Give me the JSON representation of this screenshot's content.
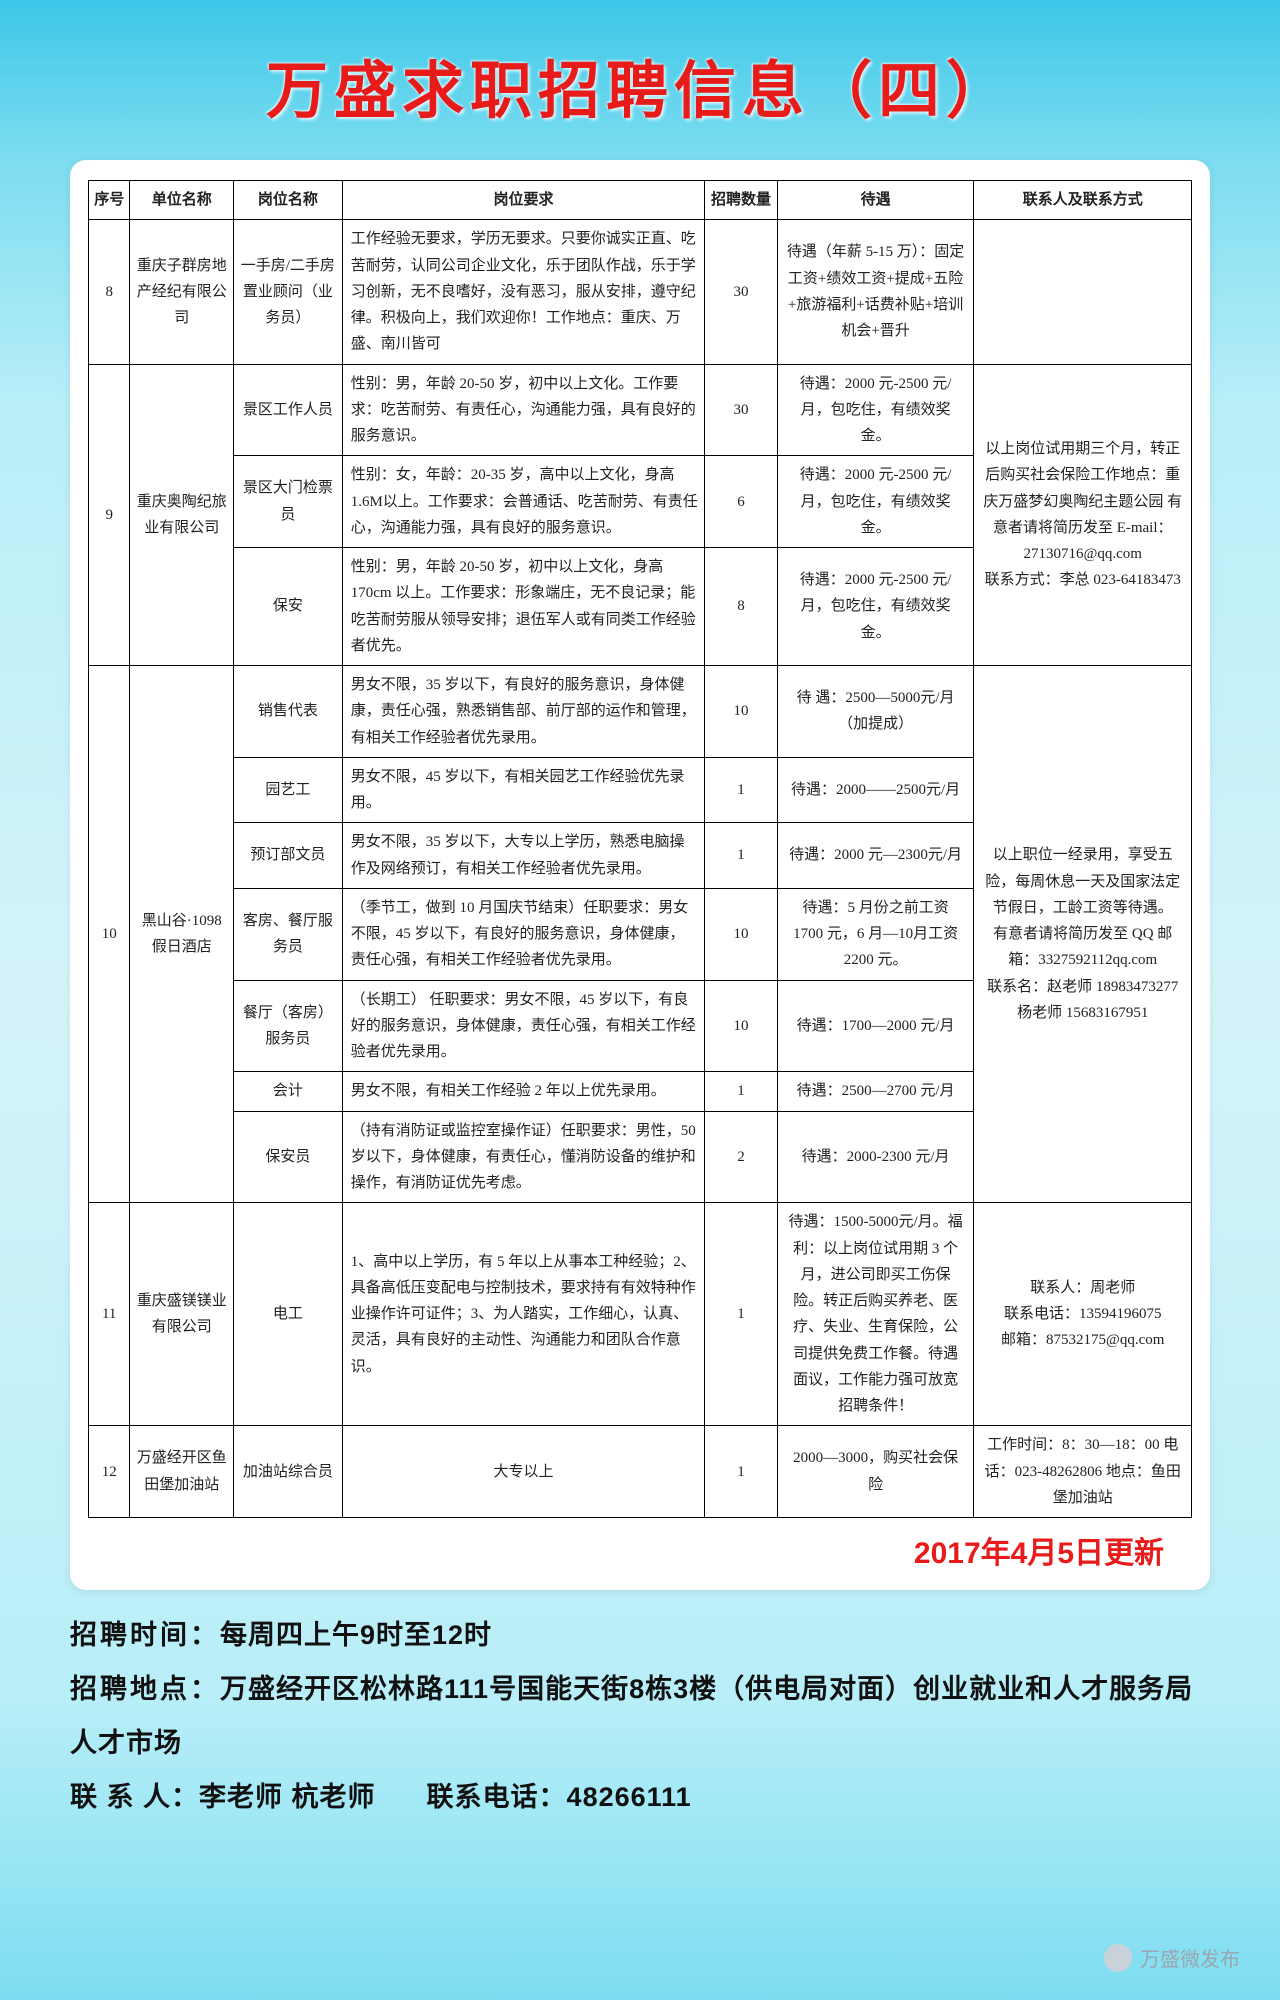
{
  "title": "万盛求职招聘信息（四）",
  "headers": {
    "no": "序号",
    "company": "单位名称",
    "position": "岗位名称",
    "requirements": "岗位要求",
    "count": "招聘数量",
    "treatment": "待遇",
    "contact": "联系人及联系方式"
  },
  "rows": [
    {
      "no": "8",
      "company": "重庆子群房地产经纪有限公司",
      "position": "一手房/二手房  置业顾问（业务员）",
      "req": "工作经验无要求，学历无要求。只要你诚实正直、吃苦耐劳，认同公司企业文化，乐于团队作战，乐于学习创新，无不良嗜好，没有恶习，服从安排，遵守纪律。积极向上，我们欢迎你！工作地点：重庆、万盛、南川皆可",
      "cnt": "30",
      "treat": "待遇（年薪 5-15 万）：固定工资+绩效工资+提成+五险+旅游福利+话费补贴+培训机会+晋升",
      "contact": ""
    }
  ],
  "group9": {
    "no": "9",
    "company": "重庆奥陶纪旅业有限公司",
    "contact": "以上岗位试用期三个月，转正后购买社会保险工作地点：重庆万盛梦幻奥陶纪主题公园 有意者请将简历发至 E-mail：27130716@qq.com\n联系方式：李总 023-64183473",
    "sub": [
      {
        "pos": "景区工作人员",
        "req": "性别：男，年龄 20-50 岁，初中以上文化。工作要求：吃苦耐劳、有责任心，沟通能力强，具有良好的服务意识。",
        "cnt": "30",
        "treat": "待遇：2000 元-2500 元/月，包吃住，有绩效奖金。"
      },
      {
        "pos": "景区大门检票员",
        "req": "性别：女，年龄：20-35 岁，高中以上文化，身高 1.6M以上。工作要求：会普通话、吃苦耐劳、有责任心，沟通能力强，具有良好的服务意识。",
        "cnt": "6",
        "treat": "待遇：2000 元-2500 元/月，包吃住，有绩效奖金。"
      },
      {
        "pos": "保安",
        "req": "性别：男，年龄 20-50 岁，初中以上文化，身高 170cm 以上。工作要求：形象端庄，无不良记录；能吃苦耐劳服从领导安排；退伍军人或有同类工作经验者优先。",
        "cnt": "8",
        "treat": "待遇：2000 元-2500 元/月，包吃住，有绩效奖金。"
      }
    ]
  },
  "group10": {
    "no": "10",
    "company": "黑山谷·1098 假日酒店",
    "contact": "以上职位一经录用，享受五险，每周休息一天及国家法定节假日，工龄工资等待遇。\n有意者请将简历发至 QQ 邮箱：3327592112qq.com\n联系名：赵老师 18983473277\n杨老师 15683167951",
    "sub": [
      {
        "pos": "销售代表",
        "req": "男女不限，35 岁以下，有良好的服务意识，身体健康，责任心强，熟悉销售部、前厅部的运作和管理，有相关工作经验者优先录用。",
        "cnt": "10",
        "treat": "待  遇：2500—5000元/月（加提成）"
      },
      {
        "pos": "园艺工",
        "req": "男女不限，45 岁以下，有相关园艺工作经验优先录用。",
        "cnt": "1",
        "treat": "待遇：2000——2500元/月"
      },
      {
        "pos": "预订部文员",
        "req": "男女不限，35 岁以下，大专以上学历，熟悉电脑操作及网络预订，有相关工作经验者优先录用。",
        "cnt": "1",
        "treat": "待遇：2000 元—2300元/月"
      },
      {
        "pos": "客房、餐厅服务员",
        "req": "（季节工，做到 10 月国庆节结束）任职要求：男女不限，45 岁以下，有良好的服务意识，身体健康，责任心强，有相关工作经验者优先录用。",
        "cnt": "10",
        "treat": "待遇：5 月份之前工资 1700 元，6 月—10月工资 2200 元。"
      },
      {
        "pos": "餐厅（客房）服务员",
        "req": "（长期工）\n任职要求：男女不限，45 岁以下，有良好的服务意识，身体健康，责任心强，有相关工作经验者优先录用。",
        "cnt": "10",
        "treat": "待遇：1700—2000 元/月"
      },
      {
        "pos": "会计",
        "req": "男女不限，有相关工作经验 2 年以上优先录用。",
        "cnt": "1",
        "treat": "待遇：2500—2700 元/月"
      },
      {
        "pos": "保安员",
        "req": "（持有消防证或监控室操作证）任职要求：男性，50 岁以下，身体健康，有责任心，懂消防设备的维护和操作，有消防证优先考虑。",
        "cnt": "2",
        "treat": "待遇：2000-2300 元/月"
      }
    ]
  },
  "row11": {
    "no": "11",
    "company": "重庆盛镁镁业有限公司",
    "pos": "电工",
    "req": "1、高中以上学历，有 5 年以上从事本工种经验；2、具备高低压变配电与控制技术，要求持有有效特种作业操作许可证件；3、为人踏实，工作细心，认真、灵活，具有良好的主动性、沟通能力和团队合作意识。",
    "cnt": "1",
    "treat": "待遇：1500-5000元/月。福利：以上岗位试用期 3 个月，进公司即买工伤保险。转正后购买养老、医疗、失业、生育保险，公司提供免费工作餐。待遇面议，工作能力强可放宽招聘条件！",
    "contact": "联系人：周老师\n联系电话：13594196075\n邮箱：87532175@qq.com"
  },
  "row12": {
    "no": "12",
    "company": "万盛经开区鱼田堡加油站",
    "pos": "加油站综合员",
    "req": "大专以上",
    "cnt": "1",
    "treat": "2000—3000，购买社会保险",
    "contact": "工作时间：8：30—18：00 电话：023-48262806 地点：鱼田堡加油站"
  },
  "update": "2017年4月5日更新",
  "footer": {
    "time_label": "招聘时间：",
    "time": "每周四上午9时至12时",
    "place_label": "招聘地点：",
    "place": "万盛经开区松林路111号国能天街8栋3楼（供电局对面）创业就业和人才服务局人才市场",
    "person_label": "联 系 人：",
    "person": "李老师  杭老师",
    "tel_label": "联系电话：",
    "tel": "48266111"
  },
  "source": "万盛微发布"
}
